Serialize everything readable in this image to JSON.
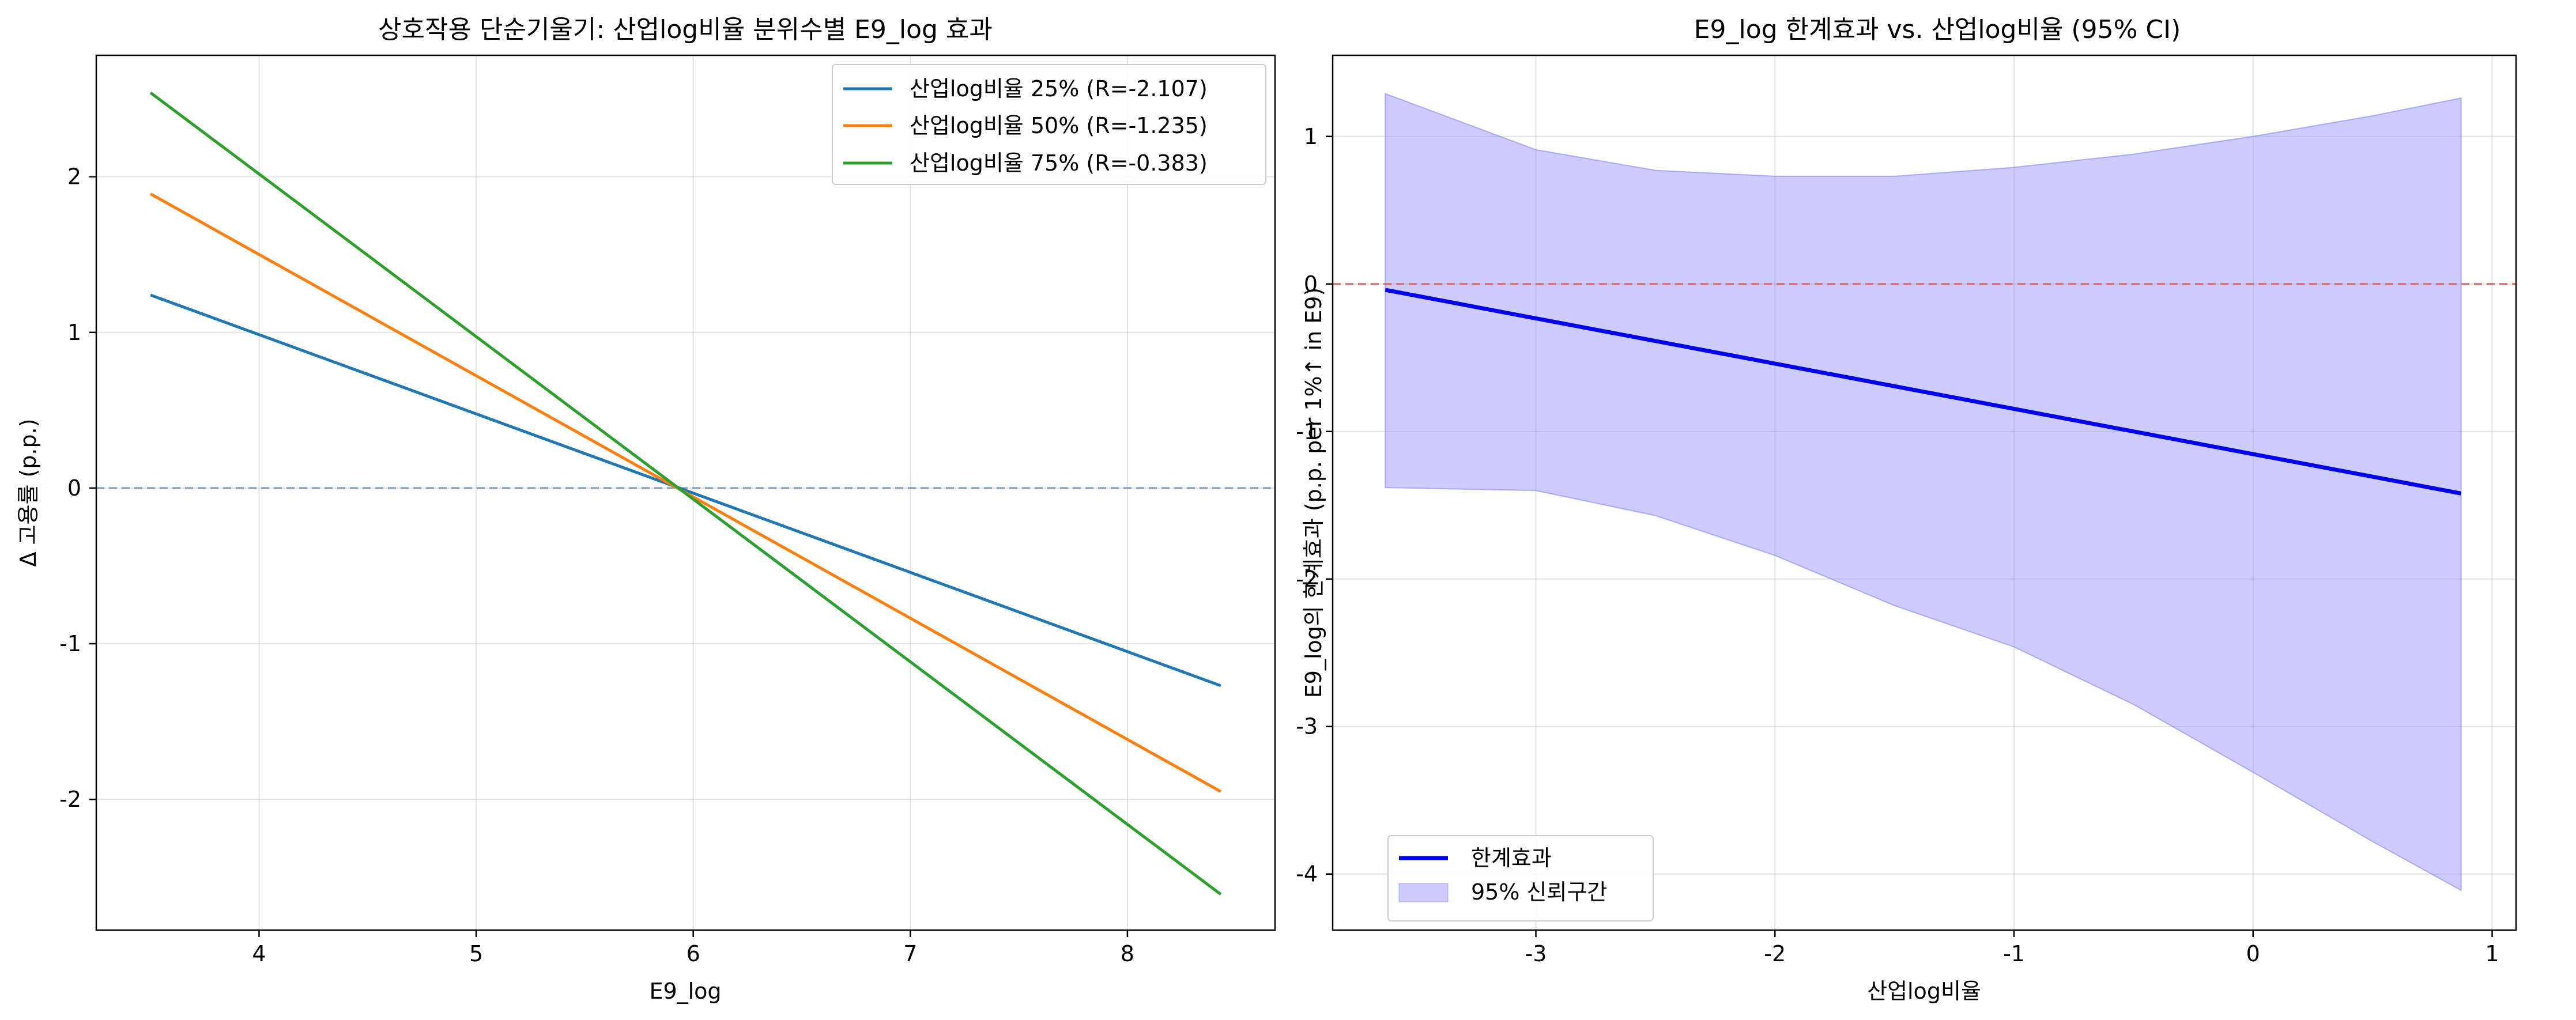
{
  "chart_data": [
    {
      "type": "line",
      "title": "상호작용 단순기울기: 산업log비율 분위수별 E9_log 효과",
      "xlabel": "E9_log",
      "ylabel": "Δ 고용률 (p.p.)",
      "xlim": [
        3.25,
        8.68
      ],
      "ylim": [
        -2.84,
        2.78
      ],
      "xticks": [
        4,
        5,
        6,
        7,
        8
      ],
      "yticks": [
        -2,
        -1,
        0,
        1,
        2
      ],
      "grid": true,
      "legend_position": "upper right",
      "reference_line": {
        "y": 0,
        "color": "#7a9cc0",
        "style": "dashed"
      },
      "series": [
        {
          "name": "산업log비율 25% (R=-2.107)",
          "color": "#1f77b4",
          "x": [
            3.5,
            8.43
          ],
          "y": [
            1.24,
            -1.27
          ]
        },
        {
          "name": "산업log비율 50% (R=-1.235)",
          "color": "#ff7f0e",
          "x": [
            3.5,
            8.43
          ],
          "y": [
            1.89,
            -1.95
          ]
        },
        {
          "name": "산업log비율 75% (R=-0.383)",
          "color": "#2ca02c",
          "x": [
            3.5,
            8.43
          ],
          "y": [
            2.54,
            -2.61
          ]
        }
      ]
    },
    {
      "type": "area",
      "title": "E9_log 한계효과 vs. 산업log비율 (95% CI)",
      "xlabel": "산업log비율",
      "ylabel": "E9_log의 한계효과 (p.p. per 1%↑ in E9)",
      "xlim": [
        -3.85,
        1.1
      ],
      "ylim": [
        -4.38,
        1.55
      ],
      "xticks": [
        -3,
        -2,
        -1,
        0,
        1
      ],
      "yticks": [
        -4,
        -3,
        -2,
        -1,
        0,
        1
      ],
      "grid": true,
      "legend_position": "lower left",
      "reference_line": {
        "y": 0,
        "color": "#e06666",
        "style": "dashed"
      },
      "series": [
        {
          "name": "한계효과",
          "kind": "line",
          "color": "#0000ee",
          "x": [
            -3.63,
            0.87
          ],
          "y": [
            -0.04,
            -1.42
          ]
        }
      ],
      "confidence_band": {
        "name": "95% 신뢰구간",
        "color": "#8080ff",
        "x": [
          -3.63,
          -3.0,
          -2.5,
          -2.0,
          -1.5,
          -1.0,
          -0.5,
          0.0,
          0.5,
          0.87
        ],
        "upper": [
          1.29,
          0.91,
          0.77,
          0.73,
          0.73,
          0.79,
          0.88,
          1.0,
          1.14,
          1.26
        ],
        "lower": [
          -1.38,
          -1.4,
          -1.57,
          -1.84,
          -2.18,
          -2.46,
          -2.85,
          -3.31,
          -3.78,
          -4.11
        ]
      }
    }
  ]
}
